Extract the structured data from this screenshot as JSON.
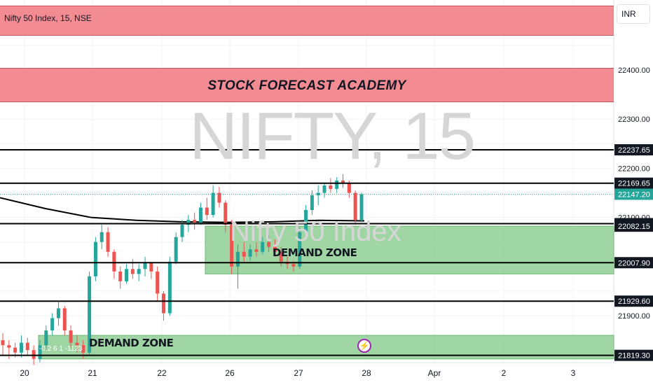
{
  "header": {
    "symbol_title": "Nifty 50 Index, 15, NSE",
    "currency": "INR"
  },
  "banner": {
    "text": "STOCK FORECAST ACADEMY"
  },
  "watermark": {
    "ticker": "NIFTY, 15",
    "name": "Nifty 50 Index"
  },
  "zones": [
    {
      "label": "DEMAND ZONE",
      "top": 22082.15,
      "bottom": 21985,
      "color": "#8fce94"
    },
    {
      "label": "DEMAND ZONE",
      "top": 21860,
      "bottom": 21812,
      "color": "#8fce94"
    }
  ],
  "indicator_text": "-0.2 6 1 -1123",
  "icons": {
    "alert": "lightning-icon"
  },
  "colors": {
    "up": "#26a69a",
    "down": "#ef5350",
    "level_line": "#000000",
    "price_tag": "#26a69a"
  },
  "chart_data": {
    "type": "candlestick",
    "title": "Nifty 50 Index, 15, NSE",
    "ylim": [
      21800,
      22480
    ],
    "y_ticks": [
      22400.0,
      22300.0,
      22200.0,
      22100.0,
      21900.0
    ],
    "x_ticks": [
      "20",
      "21",
      "22",
      "26",
      "27",
      "28",
      "Apr",
      "2",
      "3"
    ],
    "levels": [
      {
        "value": 22237.65,
        "label": "22237.65"
      },
      {
        "value": 22169.65,
        "label": "22169.65"
      },
      {
        "value": 22087.35,
        "label": "22087.35"
      },
      {
        "value": 22082.15,
        "label": "22082.15"
      },
      {
        "value": 22007.9,
        "label": "22007.90"
      },
      {
        "value": 21929.6,
        "label": "21929.60"
      },
      {
        "value": 21819.3,
        "label": "21819.30"
      }
    ],
    "current_price": {
      "value": 22147.2,
      "label": "22147.20"
    },
    "moving_average": [
      22140,
      22118,
      22100,
      22094,
      22091,
      22090,
      22091,
      22094,
      22093
    ],
    "candles": [
      {
        "o": 21850,
        "h": 21865,
        "l": 21820,
        "c": 21840
      },
      {
        "o": 21840,
        "h": 21850,
        "l": 21812,
        "c": 21835
      },
      {
        "o": 21835,
        "h": 21845,
        "l": 21815,
        "c": 21825
      },
      {
        "o": 21825,
        "h": 21860,
        "l": 21815,
        "c": 21845
      },
      {
        "o": 21845,
        "h": 21855,
        "l": 21820,
        "c": 21830
      },
      {
        "o": 21830,
        "h": 21840,
        "l": 21800,
        "c": 21812
      },
      {
        "o": 21812,
        "h": 21850,
        "l": 21805,
        "c": 21840
      },
      {
        "o": 21840,
        "h": 21880,
        "l": 21830,
        "c": 21870
      },
      {
        "o": 21870,
        "h": 21905,
        "l": 21860,
        "c": 21895
      },
      {
        "o": 21895,
        "h": 21930,
        "l": 21880,
        "c": 21915
      },
      {
        "o": 21915,
        "h": 21920,
        "l": 21860,
        "c": 21870
      },
      {
        "o": 21870,
        "h": 21880,
        "l": 21835,
        "c": 21845
      },
      {
        "o": 21845,
        "h": 21860,
        "l": 21825,
        "c": 21840
      },
      {
        "o": 21840,
        "h": 21850,
        "l": 21812,
        "c": 21825
      },
      {
        "o": 21825,
        "h": 21990,
        "l": 21820,
        "c": 21980
      },
      {
        "o": 21980,
        "h": 22060,
        "l": 21970,
        "c": 22050
      },
      {
        "o": 22050,
        "h": 22085,
        "l": 22035,
        "c": 22070
      },
      {
        "o": 22070,
        "h": 22080,
        "l": 22020,
        "c": 22030
      },
      {
        "o": 22030,
        "h": 22035,
        "l": 21975,
        "c": 21990
      },
      {
        "o": 21990,
        "h": 22000,
        "l": 21955,
        "c": 21970
      },
      {
        "o": 21970,
        "h": 22005,
        "l": 21965,
        "c": 21995
      },
      {
        "o": 21995,
        "h": 22015,
        "l": 21975,
        "c": 21985
      },
      {
        "o": 21985,
        "h": 22005,
        "l": 21970,
        "c": 21995
      },
      {
        "o": 21995,
        "h": 22020,
        "l": 21980,
        "c": 22008
      },
      {
        "o": 22008,
        "h": 22010,
        "l": 21975,
        "c": 21990
      },
      {
        "o": 21990,
        "h": 22000,
        "l": 21930,
        "c": 21945
      },
      {
        "o": 21945,
        "h": 21950,
        "l": 21890,
        "c": 21905
      },
      {
        "o": 21905,
        "h": 22020,
        "l": 21900,
        "c": 22010
      },
      {
        "o": 22010,
        "h": 22070,
        "l": 22005,
        "c": 22060
      },
      {
        "o": 22060,
        "h": 22095,
        "l": 22050,
        "c": 22085
      },
      {
        "o": 22085,
        "h": 22105,
        "l": 22070,
        "c": 22095
      },
      {
        "o": 22095,
        "h": 22110,
        "l": 22075,
        "c": 22090
      },
      {
        "o": 22090,
        "h": 22130,
        "l": 22085,
        "c": 22120
      },
      {
        "o": 22120,
        "h": 22140,
        "l": 22095,
        "c": 22105
      },
      {
        "o": 22105,
        "h": 22165,
        "l": 22100,
        "c": 22150
      },
      {
        "o": 22150,
        "h": 22162,
        "l": 22120,
        "c": 22130
      },
      {
        "o": 22130,
        "h": 22135,
        "l": 22070,
        "c": 22085
      },
      {
        "o": 22085,
        "h": 22095,
        "l": 21985,
        "c": 22000
      },
      {
        "o": 22000,
        "h": 22045,
        "l": 21955,
        "c": 22030
      },
      {
        "o": 22030,
        "h": 22050,
        "l": 22010,
        "c": 22020
      },
      {
        "o": 22020,
        "h": 22045,
        "l": 22012,
        "c": 22035
      },
      {
        "o": 22035,
        "h": 22050,
        "l": 22020,
        "c": 22030
      },
      {
        "o": 22030,
        "h": 22060,
        "l": 22025,
        "c": 22050
      },
      {
        "o": 22050,
        "h": 22065,
        "l": 22030,
        "c": 22040
      },
      {
        "o": 22040,
        "h": 22055,
        "l": 22020,
        "c": 22030
      },
      {
        "o": 22030,
        "h": 22040,
        "l": 22000,
        "c": 22010
      },
      {
        "o": 22010,
        "h": 22020,
        "l": 21995,
        "c": 22005
      },
      {
        "o": 22005,
        "h": 22012,
        "l": 21990,
        "c": 22000
      },
      {
        "o": 22000,
        "h": 22080,
        "l": 21995,
        "c": 22070
      },
      {
        "o": 22070,
        "h": 22125,
        "l": 22060,
        "c": 22115
      },
      {
        "o": 22115,
        "h": 22155,
        "l": 22105,
        "c": 22145
      },
      {
        "o": 22145,
        "h": 22165,
        "l": 22125,
        "c": 22150
      },
      {
        "o": 22150,
        "h": 22170,
        "l": 22140,
        "c": 22165
      },
      {
        "o": 22165,
        "h": 22180,
        "l": 22150,
        "c": 22158
      },
      {
        "o": 22158,
        "h": 22182,
        "l": 22150,
        "c": 22175
      },
      {
        "o": 22175,
        "h": 22188,
        "l": 22160,
        "c": 22170
      },
      {
        "o": 22170,
        "h": 22175,
        "l": 22140,
        "c": 22150
      },
      {
        "o": 22150,
        "h": 22155,
        "l": 22085,
        "c": 22095
      },
      {
        "o": 22095,
        "h": 22150,
        "l": 22090,
        "c": 22147.2
      }
    ]
  }
}
